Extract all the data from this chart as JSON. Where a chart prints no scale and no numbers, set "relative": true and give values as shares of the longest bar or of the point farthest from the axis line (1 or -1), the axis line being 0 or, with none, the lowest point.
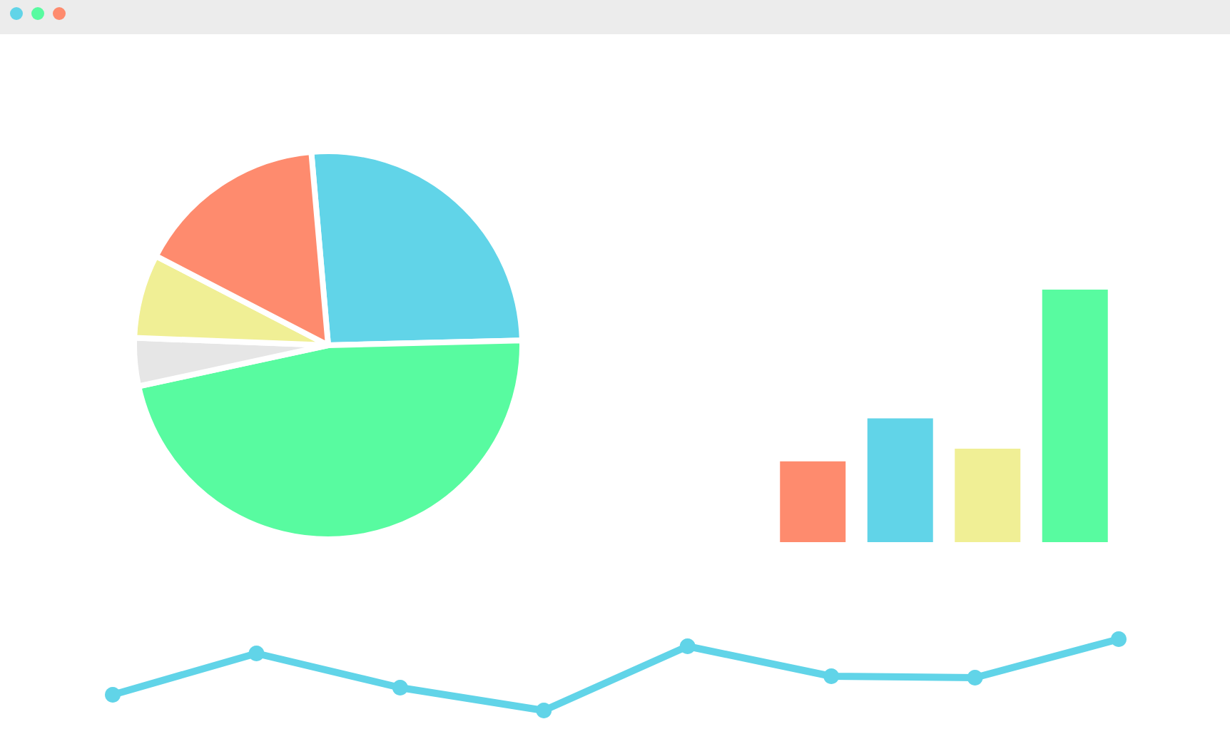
{
  "chart_data": [
    {
      "type": "pie",
      "categories": [
        null,
        null,
        null,
        null,
        null
      ],
      "values": [
        26,
        47,
        4,
        7,
        16
      ],
      "colors": [
        "#61d4e8",
        "#58fba0",
        "#e6e6e6",
        "#f0ef95",
        "#fe8b6e"
      ]
    },
    {
      "type": "bar",
      "relative": true,
      "categories": [
        null,
        null,
        null,
        null
      ],
      "values": [
        0.32,
        0.49,
        0.37,
        1
      ],
      "colors": [
        "#fe8b6e",
        "#61d4e8",
        "#f0ef95",
        "#58fba0"
      ]
    },
    {
      "type": "line",
      "relative": true,
      "marker": "circle",
      "categories": [
        null,
        null,
        null,
        null,
        null,
        null,
        null,
        null
      ],
      "series": [
        {
          "color": "#61d4e8",
          "values": [
            0.22,
            0.8,
            0.32,
            0,
            0.9,
            0.48,
            0.46,
            1
          ]
        }
      ]
    }
  ]
}
